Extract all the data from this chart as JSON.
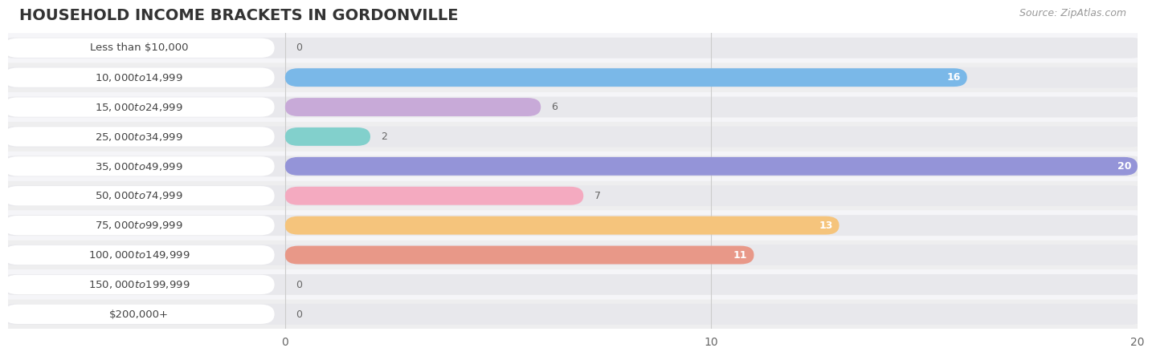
{
  "title": "HOUSEHOLD INCOME BRACKETS IN GORDONVILLE",
  "source": "Source: ZipAtlas.com",
  "categories": [
    "Less than $10,000",
    "$10,000 to $14,999",
    "$15,000 to $24,999",
    "$25,000 to $34,999",
    "$35,000 to $49,999",
    "$50,000 to $74,999",
    "$75,000 to $99,999",
    "$100,000 to $149,999",
    "$150,000 to $199,999",
    "$200,000+"
  ],
  "values": [
    0,
    16,
    6,
    2,
    20,
    7,
    13,
    11,
    0,
    0
  ],
  "bar_colors": [
    "#f2a8a8",
    "#7ab8e8",
    "#c8aad8",
    "#82d0cc",
    "#9494d8",
    "#f4aac0",
    "#f5c47c",
    "#e89888",
    "#a8c8e8",
    "#d0b8d8"
  ],
  "xlim": [
    0,
    20
  ],
  "xticks": [
    0,
    10,
    20
  ],
  "background_color": "#ffffff",
  "row_bg_even": "#f5f5f8",
  "row_bg_odd": "#eeeeef",
  "bar_track_color": "#e8e8ec",
  "label_pill_color": "#ffffff",
  "title_fontsize": 14,
  "label_fontsize": 10,
  "source_fontsize": 9
}
